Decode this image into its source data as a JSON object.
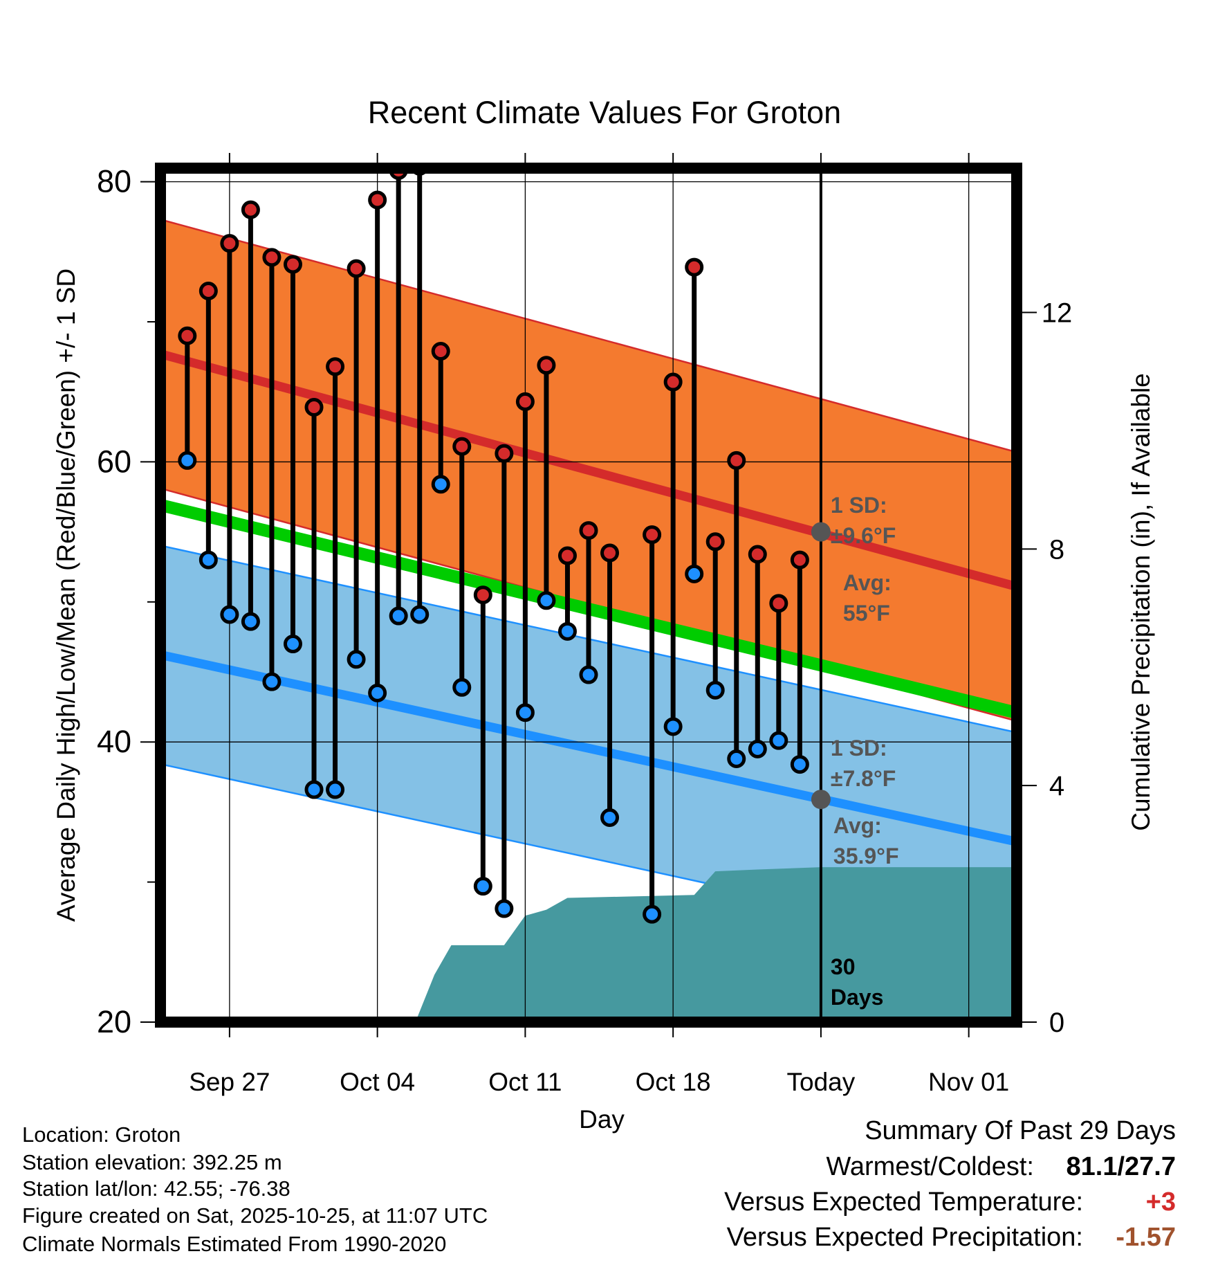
{
  "chart_data": {
    "type": "line",
    "title": "Recent Climate Values For Groton",
    "xlabel": "Day",
    "ylabel_left": "Average Daily High/Low/Mean (Red/Blue/Green) +/- 1 SD",
    "ylabel_right": "Cumulative Precipitation (in), If Available",
    "x_range_days": [
      -31.5,
      9.5
    ],
    "y_range_temp": [
      20,
      80.97
    ],
    "y_range_precip": [
      0,
      14.44
    ],
    "x_ticks": [
      {
        "day": -28,
        "label": "Sep 27"
      },
      {
        "day": -21,
        "label": "Oct 04"
      },
      {
        "day": -14,
        "label": "Oct 11"
      },
      {
        "day": -7,
        "label": "Oct 18"
      },
      {
        "day": 0,
        "label": "Today"
      },
      {
        "day": 7,
        "label": "Nov 01"
      }
    ],
    "y_ticks_left": [
      20,
      40,
      60,
      80
    ],
    "y_minor_ticks_left": [
      30,
      50,
      70
    ],
    "y_ticks_right": [
      0,
      4,
      8,
      12
    ],
    "normal_high": {
      "start": 67.8,
      "end": 51.0,
      "sd": 9.6
    },
    "normal_low": {
      "start": 46.3,
      "end": 32.8,
      "sd": 7.8
    },
    "normal_mean": {
      "start": 57.0,
      "end": 42.0
    },
    "daily_temps": [
      {
        "day": -30,
        "high": 69.0,
        "low": 60.1
      },
      {
        "day": -29,
        "high": 72.2,
        "low": 53.0
      },
      {
        "day": -28,
        "high": 75.6,
        "low": 49.1
      },
      {
        "day": -27,
        "high": 78.0,
        "low": 48.6
      },
      {
        "day": -26,
        "high": 74.6,
        "low": 44.3
      },
      {
        "day": -25,
        "high": 74.1,
        "low": 47.0
      },
      {
        "day": -24,
        "high": 63.9,
        "low": 36.6
      },
      {
        "day": -23,
        "high": 66.8,
        "low": 36.6
      },
      {
        "day": -22,
        "high": 73.8,
        "low": 45.9
      },
      {
        "day": -21,
        "high": 78.7,
        "low": 43.5
      },
      {
        "day": -20,
        "high": 80.8,
        "low": 49.0
      },
      {
        "day": -19,
        "high": 81.1,
        "low": 49.1
      },
      {
        "day": -18,
        "high": 67.9,
        "low": 58.4
      },
      {
        "day": -17,
        "high": 61.1,
        "low": 43.9
      },
      {
        "day": -16,
        "high": 50.5,
        "low": 29.7
      },
      {
        "day": -15,
        "high": 60.6,
        "low": 28.1
      },
      {
        "day": -14,
        "high": 64.3,
        "low": 42.1
      },
      {
        "day": -13,
        "high": 66.9,
        "low": 50.1
      },
      {
        "day": -12,
        "high": 53.3,
        "low": 47.9
      },
      {
        "day": -11,
        "high": 55.1,
        "low": 44.8
      },
      {
        "day": -10,
        "high": 53.5,
        "low": 34.6
      },
      {
        "day": -8,
        "high": 54.8,
        "low": 27.7
      },
      {
        "day": -7,
        "high": 65.7,
        "low": 41.1
      },
      {
        "day": -6,
        "high": 73.9,
        "low": 52.0
      },
      {
        "day": -5,
        "high": 54.3,
        "low": 43.7
      },
      {
        "day": -4,
        "high": 60.1,
        "low": 38.8
      },
      {
        "day": -3,
        "high": 53.4,
        "low": 39.5
      },
      {
        "day": -2,
        "high": 49.9,
        "low": 40.1
      },
      {
        "day": -1,
        "high": 53.0,
        "low": 38.4
      }
    ],
    "cumulative_precip": [
      {
        "day": -19.2,
        "value": 0.0
      },
      {
        "day": -18.3,
        "value": 0.8
      },
      {
        "day": -17.5,
        "value": 1.3
      },
      {
        "day": -15.0,
        "value": 1.3
      },
      {
        "day": -14.0,
        "value": 1.8
      },
      {
        "day": -13.0,
        "value": 1.9
      },
      {
        "day": -12.0,
        "value": 2.1
      },
      {
        "day": -6.0,
        "value": 2.15
      },
      {
        "day": -5.0,
        "value": 2.55
      },
      {
        "day": -3.0,
        "value": 2.58
      },
      {
        "day": 0.0,
        "value": 2.62
      },
      {
        "day": 9.5,
        "value": 2.62
      }
    ],
    "annotations": {
      "high_sd_label": "1 SD:",
      "high_sd_value": "±9.6°F",
      "high_avg_label": "Avg:",
      "high_avg_value": "55°F",
      "low_sd_label": "1 SD:",
      "low_sd_value": "±7.8°F",
      "low_avg_label": "Avg:",
      "low_avg_value": "35.9°F",
      "window_number": "30",
      "window_unit": "Days"
    },
    "today_high_avg": 55,
    "today_low_avg": 35.9,
    "colors": {
      "high_band": "#f47a2f",
      "high_line": "#d42b2b",
      "low_band": "#84c1e6",
      "low_line": "#1e90ff",
      "mean_line": "#00cc00",
      "precip": "#46999f",
      "high_dot": "#d42b2b",
      "low_dot": "#1e90ff",
      "annotation": "#555555",
      "warm_value": "#d42b2b",
      "precip_value": "#a0522d"
    }
  },
  "station_info": [
    "Location: Groton",
    "Station elevation: 392.25 m",
    "Station lat/lon: 42.55; -76.38",
    "Figure created on Sat, 2025-10-25, at 11:07 UTC",
    "Climate Normals Estimated From 1990-2020"
  ],
  "summary": {
    "title": "Summary Of Past 29 Days",
    "warm_cold_label": "Warmest/Coldest:",
    "warm_cold_value": "81.1/27.7",
    "temp_label": "Versus Expected Temperature:",
    "temp_value": "+3",
    "precip_label": "Versus Expected Precipitation:",
    "precip_value": "-1.57"
  }
}
